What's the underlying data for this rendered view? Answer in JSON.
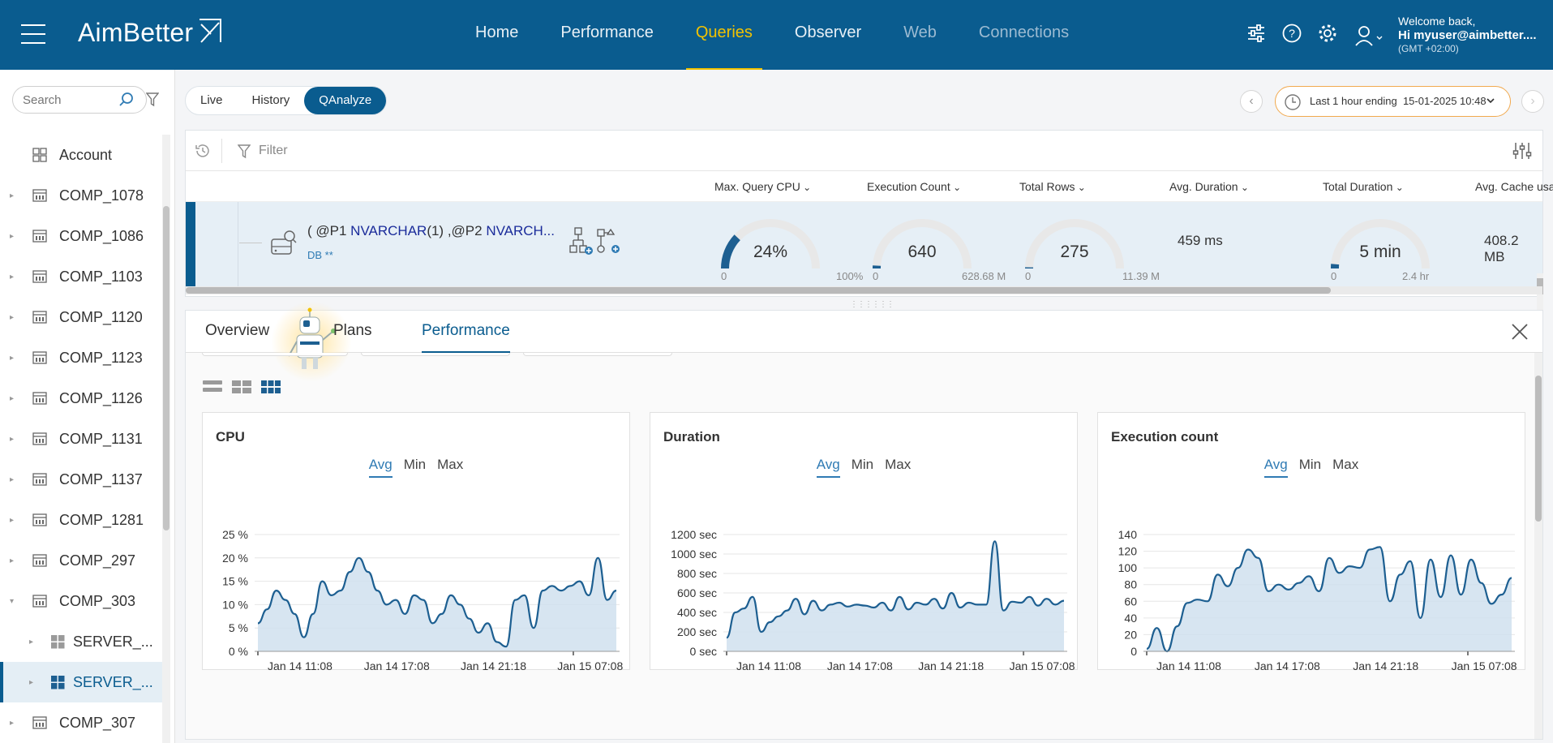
{
  "header": {
    "logo": "AimBetter",
    "nav": [
      {
        "label": "Home",
        "state": "normal"
      },
      {
        "label": "Performance",
        "state": "normal"
      },
      {
        "label": "Queries",
        "state": "active"
      },
      {
        "label": "Observer",
        "state": "normal"
      },
      {
        "label": "Web",
        "state": "dim"
      },
      {
        "label": "Connections",
        "state": "dim"
      }
    ],
    "icons": [
      "sliders-icon",
      "help-icon",
      "gear-icon"
    ],
    "user": {
      "welcome": "Welcome back,",
      "name": "Hi myuser@aimbetter....",
      "tz": "(GMT +02:00)"
    }
  },
  "sidebar": {
    "search_placeholder": "Search",
    "items": [
      {
        "label": "Account",
        "icon": "grid-icon",
        "level": 0,
        "caret": ""
      },
      {
        "label": "COMP_1078",
        "icon": "company-icon",
        "level": 0,
        "caret": "right"
      },
      {
        "label": "COMP_1086",
        "icon": "company-icon",
        "level": 0,
        "caret": "right"
      },
      {
        "label": "COMP_1103",
        "icon": "company-icon",
        "level": 0,
        "caret": "right"
      },
      {
        "label": "COMP_1120",
        "icon": "company-icon",
        "level": 0,
        "caret": "right"
      },
      {
        "label": "COMP_1123",
        "icon": "company-icon",
        "level": 0,
        "caret": "right"
      },
      {
        "label": "COMP_1126",
        "icon": "company-icon",
        "level": 0,
        "caret": "right"
      },
      {
        "label": "COMP_1131",
        "icon": "company-icon",
        "level": 0,
        "caret": "right"
      },
      {
        "label": "COMP_1137",
        "icon": "company-icon",
        "level": 0,
        "caret": "right"
      },
      {
        "label": "COMP_1281",
        "icon": "company-icon",
        "level": 0,
        "caret": "right"
      },
      {
        "label": "COMP_297",
        "icon": "company-icon",
        "level": 0,
        "caret": "right"
      },
      {
        "label": "COMP_303",
        "icon": "company-icon",
        "level": 0,
        "caret": "down"
      },
      {
        "label": "SERVER_...",
        "icon": "windows-icon",
        "level": 1,
        "caret": "right"
      },
      {
        "label": "SERVER_...",
        "icon": "windows-icon",
        "level": 1,
        "caret": "right",
        "selected": true
      },
      {
        "label": "COMP_307",
        "icon": "company-icon",
        "level": 0,
        "caret": "right"
      }
    ]
  },
  "toolbar": {
    "modes": [
      {
        "label": "Live",
        "active": false
      },
      {
        "label": "History",
        "active": false
      },
      {
        "label": "QAnalyze",
        "active": true
      }
    ],
    "time_range": "Last 1 hour ending",
    "time_value": "15-01-2025 10:48",
    "filter_placeholder": "Filter"
  },
  "columns": [
    "Max. Query CPU",
    "Execution Count",
    "Total Rows",
    "Avg. Duration",
    "Total Duration",
    "Avg. Cache usa"
  ],
  "query_row": {
    "text_parts": [
      {
        "t": "( @P1 ",
        "kw": false
      },
      {
        "t": "NVARCHAR",
        "kw": true
      },
      {
        "t": "(1) ,@P2 ",
        "kw": false
      },
      {
        "t": "NVARCH...",
        "kw": true
      }
    ],
    "db": "DB **",
    "gauges": [
      {
        "value": "24%",
        "min": "0",
        "max": "100%",
        "fraction": 0.24
      },
      {
        "value": "640",
        "min": "0",
        "max": "628.68 M",
        "fraction": 0.02
      },
      {
        "value": "275",
        "min": "0",
        "max": "11.39 M",
        "fraction": 0
      },
      {
        "value": "5 min",
        "min": "0",
        "max": "2.4 hr",
        "fraction": 0.03
      }
    ],
    "avg_duration": "459 ms",
    "avg_cache": "408.2 MB"
  },
  "detail": {
    "tabs": [
      {
        "label": "Overview",
        "active": false
      },
      {
        "label": "Plans",
        "active": false
      },
      {
        "label": "Performance",
        "active": true
      }
    ],
    "segments": [
      "Avg",
      "Min",
      "Max"
    ],
    "cards": [
      {
        "title": "CPU"
      },
      {
        "title": "Duration"
      },
      {
        "title": "Execution count"
      }
    ]
  },
  "colors": {
    "brand": "#0a5c8f",
    "active_nav": "#f2c200",
    "series": "#1d5f91",
    "fill": "#d0e1ee"
  },
  "chart_data": [
    {
      "type": "area",
      "title": "CPU",
      "yticks": [
        "0 %",
        "5 %",
        "10 %",
        "15 %",
        "20 %",
        "25 %"
      ],
      "ylim": [
        0,
        25
      ],
      "xticks": [
        "Jan 14 11:08",
        "Jan 14 17:08",
        "Jan 14 21:18",
        "Jan 15 07:08"
      ],
      "values": [
        6,
        9,
        13,
        11,
        8,
        3,
        8,
        15,
        12,
        13,
        17,
        20,
        17,
        13,
        10,
        11,
        8,
        12,
        11,
        6,
        8,
        12,
        10,
        7,
        4,
        6,
        2,
        1,
        11,
        12,
        5,
        13,
        14,
        13,
        14,
        15,
        12,
        20,
        11,
        13
      ]
    },
    {
      "type": "area",
      "title": "Duration",
      "yticks": [
        "0 sec",
        "200 sec",
        "400 sec",
        "600 sec",
        "800 sec",
        "1000 sec",
        "1200 sec"
      ],
      "ylim": [
        0,
        1200
      ],
      "xticks": [
        "Jan 14 11:08",
        "Jan 14 17:08",
        "Jan 14 21:18",
        "Jan 15 07:08"
      ],
      "values": [
        140,
        400,
        440,
        560,
        200,
        300,
        360,
        420,
        540,
        380,
        520,
        420,
        480,
        500,
        460,
        480,
        470,
        450,
        500,
        420,
        560,
        430,
        500,
        480,
        540,
        440,
        600,
        450,
        500,
        480,
        480,
        1130,
        420,
        510,
        500,
        560,
        470,
        540,
        480,
        520
      ]
    },
    {
      "type": "area",
      "title": "Execution count",
      "yticks": [
        "0",
        "20",
        "40",
        "60",
        "80",
        "100",
        "120",
        "140"
      ],
      "ylim": [
        0,
        140
      ],
      "xticks": [
        "Jan 14 11:08",
        "Jan 14 17:08",
        "Jan 14 21:18",
        "Jan 15 07:08"
      ],
      "values": [
        3,
        28,
        0,
        30,
        58,
        62,
        60,
        92,
        78,
        100,
        122,
        112,
        72,
        80,
        74,
        82,
        90,
        72,
        112,
        94,
        102,
        100,
        122,
        125,
        60,
        92,
        108,
        40,
        110,
        65,
        115,
        68,
        110,
        82,
        57,
        68,
        88
      ]
    }
  ]
}
